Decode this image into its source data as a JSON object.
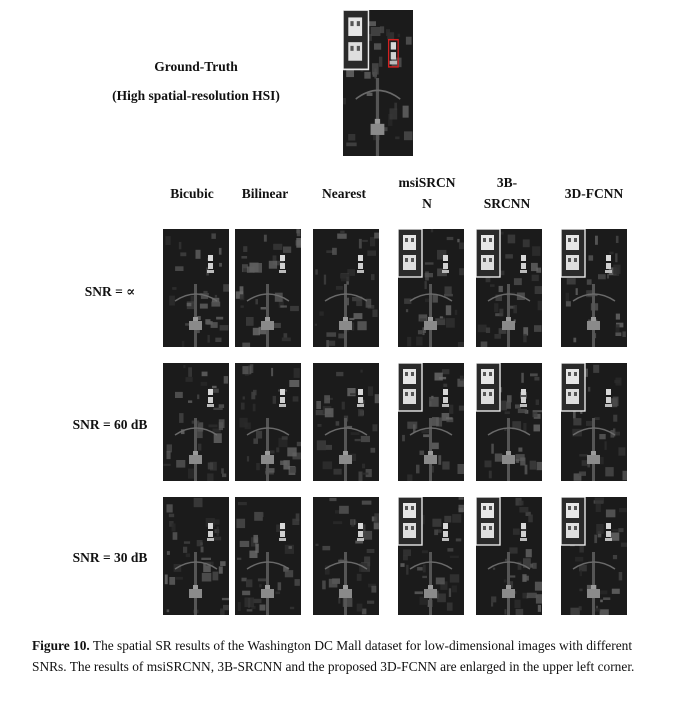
{
  "ground_truth": {
    "title": "Ground-Truth",
    "subtitle": "(High spatial-resolution HSI)"
  },
  "columns": [
    {
      "id": "bicubic",
      "label": "Bicubic",
      "enlarged": false
    },
    {
      "id": "bilinear",
      "label": "Bilinear",
      "enlarged": false
    },
    {
      "id": "nearest",
      "label": "Nearest",
      "enlarged": false
    },
    {
      "id": "msisrcnn",
      "label": "msiSRCN\nN",
      "enlarged": true
    },
    {
      "id": "3bsrcnn",
      "label": "3B-\nSRCNN",
      "enlarged": true
    },
    {
      "id": "3dfcnn",
      "label": "3D-FCNN",
      "enlarged": true
    }
  ],
  "rows": [
    {
      "id": "snr-inf",
      "label": "SNR = ∝"
    },
    {
      "id": "snr-60",
      "label": "SNR = 60 dB"
    },
    {
      "id": "snr-30",
      "label": "SNR = 30 dB"
    }
  ],
  "caption": {
    "figure_label": "Figure 10.",
    "text": " The spatial SR results of the Washington DC Mall dataset for low-dimensional images with different SNRs. The results of msiSRCNN, 3B-SRCNN and the proposed 3D-FCNN are enlarged in the upper left corner."
  },
  "colors": {
    "image_bg": "#1b1b1b",
    "highlight_box": "#d42020",
    "inset_border": "#e8e8e8"
  }
}
